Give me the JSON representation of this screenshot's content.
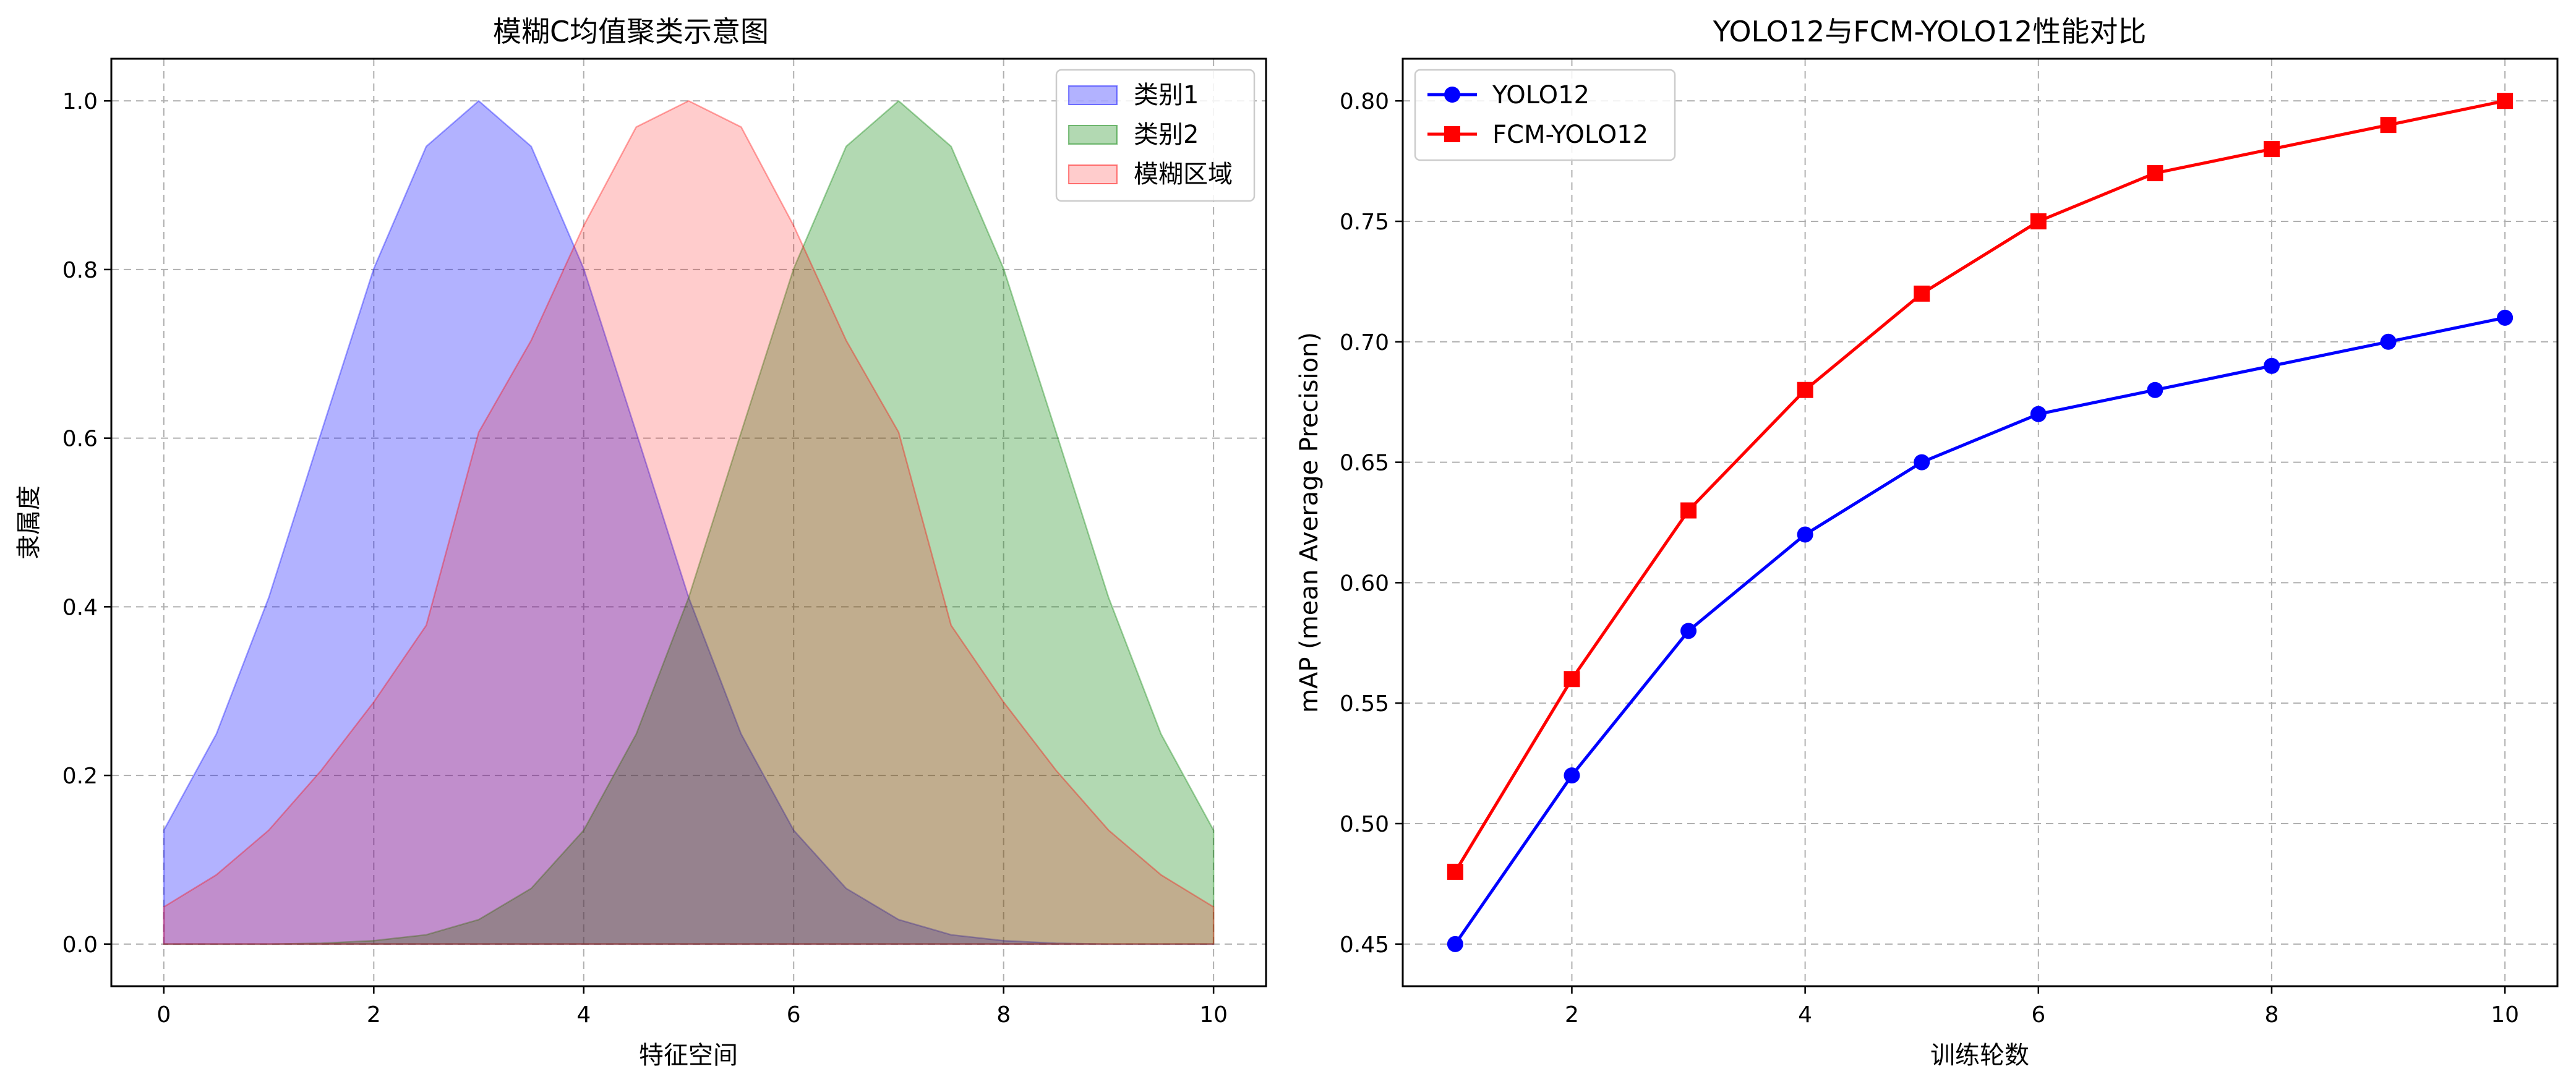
{
  "chart_data": [
    {
      "type": "area",
      "title": "模糊C均值聚类示意图",
      "xlabel": "特征空间",
      "ylabel": "隶属度",
      "xlim": [
        -0.5,
        10.5
      ],
      "ylim": [
        -0.05,
        1.05
      ],
      "xticks": [
        0,
        2,
        4,
        6,
        8,
        10
      ],
      "xtick_labels": [
        "0",
        "2",
        "4",
        "6",
        "8",
        "10"
      ],
      "yticks": [
        0.0,
        0.2,
        0.4,
        0.6,
        0.8,
        1.0
      ],
      "ytick_labels": [
        "0.0",
        "0.2",
        "0.4",
        "0.6",
        "0.8",
        "1.0"
      ],
      "grid": true,
      "legend_position": "top-right",
      "x": [
        0,
        0.5,
        1,
        1.5,
        2,
        2.5,
        3,
        3.5,
        4,
        4.5,
        5,
        5.5,
        6,
        6.5,
        7,
        7.5,
        8,
        8.5,
        9,
        9.5,
        10
      ],
      "series": [
        {
          "name": "类别1",
          "color": "#0000ff",
          "opacity": 0.3,
          "values": [
            0.135,
            0.249,
            0.411,
            0.607,
            0.801,
            0.946,
            1.0,
            0.946,
            0.801,
            0.607,
            0.411,
            0.249,
            0.135,
            0.066,
            0.029,
            0.011,
            0.004,
            0.001,
            0.0,
            0.0,
            0.0
          ]
        },
        {
          "name": "类别2",
          "color": "#008000",
          "opacity": 0.3,
          "values": [
            0.0,
            0.0,
            0.0,
            0.001,
            0.004,
            0.011,
            0.029,
            0.066,
            0.135,
            0.249,
            0.411,
            0.607,
            0.801,
            0.946,
            1.0,
            0.946,
            0.801,
            0.607,
            0.411,
            0.249,
            0.135
          ]
        },
        {
          "name": "模糊区域",
          "color": "#ff0000",
          "opacity": 0.2,
          "values": [
            0.044,
            0.082,
            0.135,
            0.206,
            0.287,
            0.378,
            0.607,
            0.716,
            0.852,
            0.969,
            1.0,
            0.969,
            0.852,
            0.716,
            0.607,
            0.378,
            0.287,
            0.206,
            0.135,
            0.082,
            0.044
          ]
        }
      ]
    },
    {
      "type": "line",
      "title": "YOLO12与FCM-YOLO12性能对比",
      "xlabel": "训练轮数",
      "ylabel": "mAP (mean Average Precision)",
      "xlim": [
        0.55,
        10.45
      ],
      "ylim": [
        0.4325,
        0.8175
      ],
      "xticks": [
        2,
        4,
        6,
        8,
        10
      ],
      "xtick_labels": [
        "2",
        "4",
        "6",
        "8",
        "10"
      ],
      "yticks": [
        0.45,
        0.5,
        0.55,
        0.6,
        0.65,
        0.7,
        0.75,
        0.8
      ],
      "ytick_labels": [
        "0.45",
        "0.50",
        "0.55",
        "0.60",
        "0.65",
        "0.70",
        "0.75",
        "0.80"
      ],
      "grid": true,
      "legend_position": "top-left",
      "x": [
        1,
        2,
        3,
        4,
        5,
        6,
        7,
        8,
        9,
        10
      ],
      "series": [
        {
          "name": "YOLO12",
          "color": "#0000ff",
          "marker": "circle",
          "values": [
            0.45,
            0.52,
            0.58,
            0.62,
            0.65,
            0.67,
            0.68,
            0.69,
            0.7,
            0.71
          ]
        },
        {
          "name": "FCM-YOLO12",
          "color": "#ff0000",
          "marker": "square",
          "values": [
            0.48,
            0.56,
            0.63,
            0.68,
            0.72,
            0.75,
            0.77,
            0.78,
            0.79,
            0.8
          ]
        }
      ]
    }
  ]
}
